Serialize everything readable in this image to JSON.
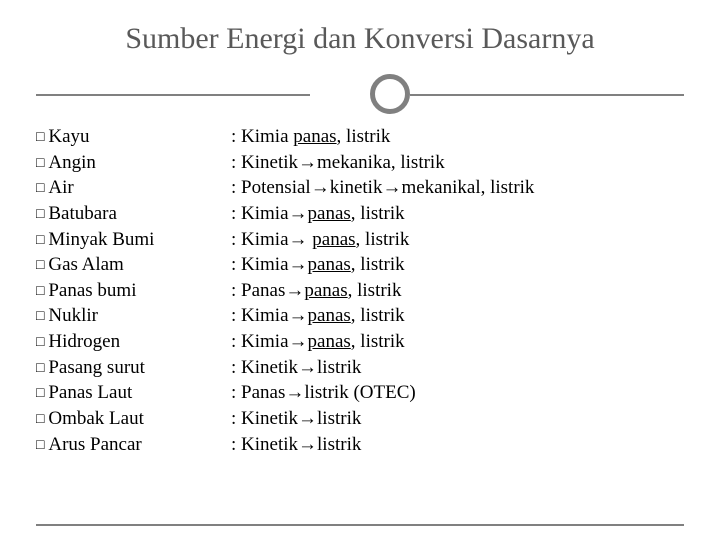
{
  "title": "Sumber Energi dan Konversi Dasarnya",
  "bullet_glyph": "□",
  "arrow_glyph": "→",
  "colors": {
    "title": "#595959",
    "line": "#808080",
    "text": "#000000",
    "background": "#ffffff"
  },
  "items": [
    {
      "name": "Kayu",
      "conv_prefix": ": Kimia ",
      "underlined": "panas",
      "conv_suffix": ", listrik"
    },
    {
      "name": "Angin",
      "conv_prefix": ": Kinetik→mekanika, listrik",
      "underlined": "",
      "conv_suffix": ""
    },
    {
      "name": "Air",
      "conv_prefix": ": Potensial→kinetik→mekanikal, listrik",
      "underlined": "",
      "conv_suffix": ""
    },
    {
      "name": "Batubara",
      "conv_prefix": ": Kimia→",
      "underlined": "panas",
      "conv_suffix": ", listrik"
    },
    {
      "name": "Minyak Bumi",
      "conv_prefix": ": Kimia→ ",
      "underlined": "panas",
      "conv_suffix": ", listrik"
    },
    {
      "name": "Gas Alam",
      "conv_prefix": ": Kimia→",
      "underlined": "panas",
      "conv_suffix": ", listrik"
    },
    {
      "name": "Panas bumi",
      "conv_prefix": ": Panas→",
      "underlined": "panas",
      "conv_suffix": ", listrik"
    },
    {
      "name": "Nuklir",
      "conv_prefix": ": Kimia→",
      "underlined": "panas",
      "conv_suffix": ", listrik"
    },
    {
      "name": "Hidrogen",
      "conv_prefix": ": Kimia→",
      "underlined": "panas",
      "conv_suffix": ", listrik"
    },
    {
      "name": "Pasang surut",
      "conv_prefix": ": Kinetik→listrik",
      "underlined": "",
      "conv_suffix": ""
    },
    {
      "name": "Panas Laut",
      "conv_prefix": ": Panas→listrik (OTEC)",
      "underlined": "",
      "conv_suffix": ""
    },
    {
      "name": "Ombak Laut",
      "conv_prefix": ": Kinetik→listrik",
      "underlined": "",
      "conv_suffix": ""
    },
    {
      "name": "Arus Pancar",
      "conv_prefix": ": Kinetik→listrik",
      "underlined": "",
      "conv_suffix": ""
    }
  ]
}
